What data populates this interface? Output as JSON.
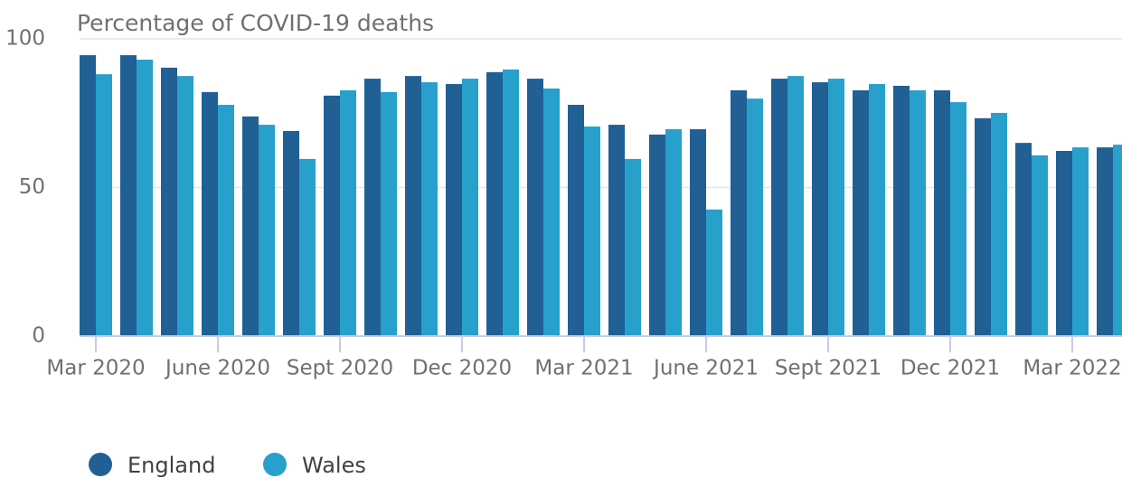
{
  "chart_data": {
    "type": "bar",
    "y_axis_label": "Percentage of COVID-19 deaths",
    "categories": [
      "Mar 2020",
      null,
      null,
      "June 2020",
      null,
      null,
      "Sept 2020",
      null,
      null,
      "Dec 2020",
      null,
      null,
      "Mar 2021",
      null,
      null,
      "June 2021",
      null,
      null,
      "Sept 2021",
      null,
      null,
      "Dec 2021",
      null,
      null,
      "Mar 2022",
      null
    ],
    "series": [
      {
        "name": "England",
        "color": "#206095",
        "values": [
          94.5,
          94.5,
          90.3,
          82.1,
          73.9,
          69.0,
          80.9,
          86.6,
          87.5,
          84.8,
          88.8,
          86.6,
          77.8,
          71.1,
          67.8,
          69.6,
          82.7,
          86.6,
          85.4,
          82.7,
          84.2,
          82.7,
          73.3,
          65.0,
          62.3,
          63.5
        ]
      },
      {
        "name": "Wales",
        "color": "#27a0cc",
        "values": [
          88.1,
          93.0,
          87.5,
          77.8,
          71.1,
          59.6,
          82.7,
          82.1,
          85.4,
          86.6,
          89.7,
          83.3,
          70.5,
          59.6,
          69.6,
          42.6,
          79.9,
          87.5,
          86.6,
          84.8,
          82.7,
          78.7,
          75.1,
          60.8,
          63.5,
          64.4
        ]
      }
    ],
    "ylim": [
      0,
      100
    ],
    "yticks": [
      0,
      50,
      100
    ],
    "grid": true,
    "legend": "bottom-left"
  }
}
